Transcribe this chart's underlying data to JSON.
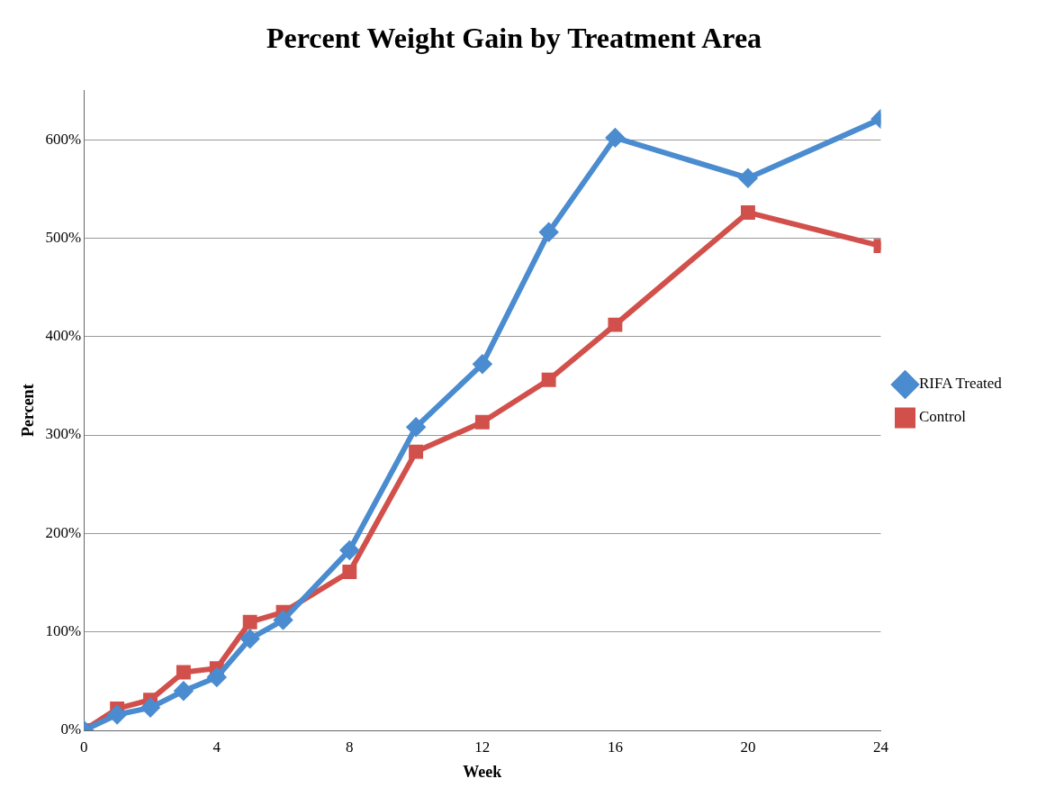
{
  "chart_data": {
    "type": "line",
    "title": "Percent Weight Gain by Treatment Area",
    "xlabel": "Week",
    "ylabel": "Percent",
    "x": [
      0,
      1,
      2,
      3,
      4,
      5,
      6,
      8,
      10,
      12,
      14,
      16,
      20,
      24
    ],
    "series": [
      {
        "name": "RIFA Treated",
        "color": "#4a8ccf",
        "marker": "diamond",
        "values": [
          0,
          16,
          23,
          40,
          54,
          93,
          112,
          183,
          308,
          372,
          506,
          602,
          561,
          621
        ]
      },
      {
        "name": "Control",
        "color": "#d2504b",
        "marker": "square",
        "values": [
          0,
          22,
          31,
          59,
          63,
          110,
          120,
          161,
          283,
          313,
          356,
          412,
          526,
          492
        ]
      }
    ],
    "xlim": [
      0,
      24
    ],
    "xticks": [
      0,
      4,
      8,
      12,
      16,
      20,
      24
    ],
    "ylim": [
      0,
      650
    ],
    "yticks": [
      {
        "value": 0,
        "label": "0%"
      },
      {
        "value": 100,
        "label": "100%"
      },
      {
        "value": 200,
        "label": "200%"
      },
      {
        "value": 300,
        "label": "300%"
      },
      {
        "value": 400,
        "label": "400%"
      },
      {
        "value": 500,
        "label": "500%"
      },
      {
        "value": 600,
        "label": "600%"
      }
    ],
    "grid": "y",
    "legend": "right"
  }
}
